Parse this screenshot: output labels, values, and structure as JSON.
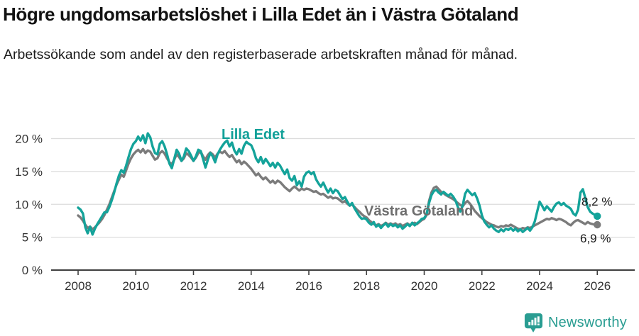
{
  "chart_data": {
    "type": "line",
    "title": "Högre ungdomsarbetslöshet i Lilla Edet än i Västra Götaland",
    "subtitle": "Arbetssökande som andel av den registerbaserade arbetskraften månad för månad.",
    "x_start_year": 2008,
    "x_step_years": 0.08333,
    "x_ticks": [
      "2008",
      "2010",
      "2012",
      "2014",
      "2016",
      "2018",
      "2020",
      "2022",
      "2024",
      "2026"
    ],
    "x_tick_years": [
      2008,
      2010,
      2012,
      2014,
      2016,
      2018,
      2020,
      2022,
      2024,
      2026
    ],
    "y_ticks": [
      {
        "value": 0,
        "label": "0 %"
      },
      {
        "value": 5,
        "label": "5 %"
      },
      {
        "value": 10,
        "label": "10 %"
      },
      {
        "value": 15,
        "label": "15 %"
      },
      {
        "value": 20,
        "label": "20 %"
      }
    ],
    "ylim": [
      0,
      21.5
    ],
    "grid": true,
    "legend_position": "inline-labels",
    "series": [
      {
        "name": "Lilla Edet",
        "color": "#14a39a",
        "end_label": "8,2 %",
        "end_value": 8.2,
        "values": [
          9.5,
          9.2,
          8.6,
          6.5,
          5.6,
          6.6,
          5.4,
          6.3,
          7.0,
          7.6,
          8.2,
          8.8,
          8.8,
          9.6,
          10.6,
          11.8,
          13.2,
          14.4,
          15.2,
          14.8,
          15.9,
          17.2,
          18.4,
          19.2,
          19.6,
          20.3,
          19.7,
          20.5,
          19.3,
          20.8,
          20.2,
          18.8,
          17.8,
          17.6,
          19.2,
          19.6,
          18.8,
          17.6,
          16.2,
          15.5,
          16.9,
          18.3,
          17.7,
          16.6,
          17.3,
          18.5,
          18.1,
          17.4,
          16.6,
          17.3,
          18.3,
          18.1,
          16.9,
          15.6,
          16.8,
          17.8,
          17.3,
          16.4,
          17.6,
          18.3,
          18.9,
          19.4,
          19.7,
          18.8,
          19.4,
          18.2,
          17.6,
          18.4,
          17.7,
          18.9,
          19.5,
          19.2,
          19.0,
          18.2,
          17.0,
          16.4,
          17.2,
          16.2,
          16.9,
          16.4,
          15.8,
          16.3,
          15.6,
          16.3,
          15.9,
          15.2,
          14.6,
          15.3,
          14.0,
          13.6,
          14.3,
          12.9,
          13.5,
          12.7,
          14.2,
          14.8,
          15.0,
          14.6,
          14.9,
          13.8,
          13.2,
          12.7,
          13.3,
          12.5,
          11.8,
          12.4,
          11.7,
          12.2,
          12.0,
          11.4,
          10.8,
          11.1,
          10.4,
          9.8,
          10.2,
          9.4,
          8.8,
          8.2,
          7.8,
          7.9,
          7.7,
          7.2,
          6.9,
          7.3,
          6.6,
          6.9,
          6.4,
          6.8,
          7.1,
          6.6,
          7.0,
          6.7,
          6.9,
          6.5,
          6.8,
          6.3,
          6.6,
          7.0,
          6.7,
          7.2,
          6.8,
          7.1,
          7.4,
          7.8,
          7.9,
          8.5,
          10.2,
          11.4,
          12.0,
          12.2,
          11.8,
          11.5,
          11.9,
          11.6,
          11.3,
          11.6,
          11.2,
          10.6,
          9.6,
          8.9,
          9.8,
          11.6,
          12.2,
          11.8,
          11.4,
          11.7,
          10.9,
          9.8,
          8.3,
          7.4,
          6.9,
          6.5,
          6.8,
          6.3,
          6.0,
          5.8,
          6.2,
          5.9,
          6.3,
          6.1,
          6.4,
          6.0,
          6.3,
          5.9,
          6.2,
          5.8,
          6.1,
          6.4,
          6.0,
          6.5,
          7.4,
          8.9,
          10.4,
          9.8,
          9.1,
          9.7,
          9.3,
          8.9,
          9.6,
          10.1,
          10.3,
          9.9,
          10.2,
          9.8,
          9.6,
          9.3,
          8.6,
          8.3,
          9.2,
          11.8,
          12.3,
          11.0,
          9.6,
          8.9,
          8.6,
          8.4,
          8.2
        ]
      },
      {
        "name": "Västra Götaland",
        "color": "#7b7b7b",
        "end_label": "6,9 %",
        "end_value": 6.9,
        "values": [
          8.3,
          8.0,
          7.5,
          6.9,
          6.4,
          6.6,
          6.2,
          6.5,
          6.9,
          7.3,
          7.8,
          8.4,
          9.2,
          10.0,
          11.0,
          12.0,
          13.0,
          13.8,
          14.5,
          14.2,
          15.2,
          16.2,
          17.0,
          17.6,
          18.0,
          18.3,
          17.9,
          18.4,
          17.8,
          18.2,
          18.0,
          17.4,
          16.8,
          17.0,
          17.8,
          18.1,
          17.7,
          17.0,
          16.4,
          16.1,
          16.8,
          17.6,
          17.2,
          16.6,
          17.0,
          17.8,
          17.5,
          17.1,
          16.6,
          17.1,
          17.8,
          18.0,
          17.3,
          16.8,
          17.5,
          17.9,
          17.6,
          17.1,
          17.7,
          18.0,
          17.8,
          18.1,
          17.6,
          17.2,
          17.5,
          16.9,
          16.4,
          16.7,
          16.1,
          16.5,
          16.2,
          15.8,
          15.4,
          14.9,
          14.4,
          14.7,
          14.2,
          13.8,
          14.1,
          13.7,
          13.3,
          13.6,
          13.2,
          13.6,
          13.4,
          13.0,
          12.6,
          12.3,
          12.0,
          12.4,
          12.7,
          12.4,
          12.1,
          12.4,
          12.2,
          12.4,
          12.3,
          12.1,
          11.9,
          12.0,
          11.7,
          11.5,
          11.6,
          11.3,
          11.0,
          11.2,
          10.9,
          11.0,
          10.9,
          10.6,
          10.3,
          10.5,
          10.1,
          9.8,
          10.0,
          9.6,
          9.2,
          8.9,
          8.5,
          8.2,
          8.0,
          7.6,
          7.3,
          7.0,
          6.8,
          7.0,
          6.7,
          6.9,
          7.2,
          6.9,
          7.1,
          6.9,
          7.1,
          6.8,
          7.0,
          6.7,
          6.9,
          7.1,
          6.8,
          7.0,
          7.2,
          7.0,
          7.3,
          7.6,
          7.8,
          8.4,
          10.5,
          11.8,
          12.5,
          12.7,
          12.3,
          11.9,
          11.7,
          11.4,
          11.2,
          11.0,
          10.8,
          10.5,
          10.2,
          9.9,
          9.7,
          10.2,
          10.5,
          10.1,
          9.6,
          9.0,
          8.6,
          8.2,
          7.9,
          7.6,
          7.3,
          7.1,
          6.9,
          6.8,
          6.6,
          6.5,
          6.7,
          6.6,
          6.8,
          6.7,
          6.9,
          6.7,
          6.5,
          6.3,
          6.2,
          6.4,
          6.3,
          6.5,
          6.4,
          6.6,
          6.8,
          7.0,
          7.2,
          7.4,
          7.6,
          7.8,
          7.7,
          7.9,
          7.8,
          7.6,
          7.8,
          7.7,
          7.5,
          7.3,
          7.0,
          6.8,
          7.2,
          7.5,
          7.6,
          7.4,
          7.2,
          7.0,
          7.3,
          7.1,
          7.0,
          6.9,
          6.9
        ]
      }
    ],
    "colors": {
      "grid": "#dcdcdc",
      "axis": "#3f3f3f",
      "tick_text": "#333333",
      "accent_teal": "#14a39a",
      "series_gray": "#7b7b7b"
    }
  },
  "footer": {
    "brand": "Newsworthy",
    "brand_color": "#2a9d92",
    "logo_icon": "bar-chart-speech-pin-icon"
  }
}
